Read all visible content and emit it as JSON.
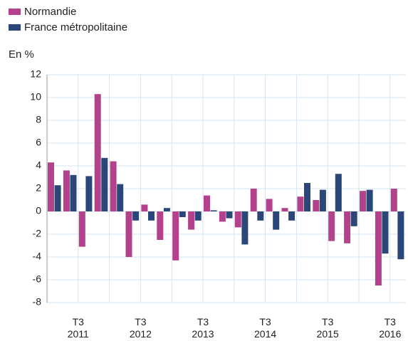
{
  "chart_data": {
    "type": "bar",
    "y_label": "En %",
    "categories": [
      null,
      null,
      "T3\n2011",
      null,
      null,
      null,
      "T3\n2012",
      null,
      null,
      null,
      "T3\n2013",
      null,
      null,
      null,
      "T3\n2014",
      null,
      null,
      null,
      "T3\n2015",
      null,
      null,
      null,
      "T3\n2016"
    ],
    "series": [
      {
        "name": "Normandie",
        "color": "#b3418c",
        "values": [
          4.3,
          3.6,
          -3.1,
          10.3,
          4.4,
          -4.0,
          0.6,
          -2.5,
          -4.3,
          -1.6,
          1.4,
          -0.9,
          -1.4,
          2.0,
          1.1,
          0.3,
          1.3,
          1.0,
          -2.6,
          -2.8,
          1.8,
          -6.5,
          2.0
        ]
      },
      {
        "name": "France métropolitaine",
        "color": "#2b4679",
        "values": [
          2.3,
          3.2,
          3.1,
          4.7,
          2.4,
          -0.8,
          -0.8,
          0.3,
          -0.5,
          -0.8,
          0.1,
          -0.6,
          -2.9,
          -0.8,
          -1.6,
          -0.8,
          2.5,
          1.9,
          3.3,
          -1.3,
          1.9,
          -3.7,
          -4.2
        ]
      }
    ],
    "ylim": [
      -8,
      12
    ],
    "yticks": [
      -8,
      -6,
      -4,
      -2,
      0,
      2,
      4,
      6,
      8,
      10,
      12
    ],
    "grid": true
  }
}
